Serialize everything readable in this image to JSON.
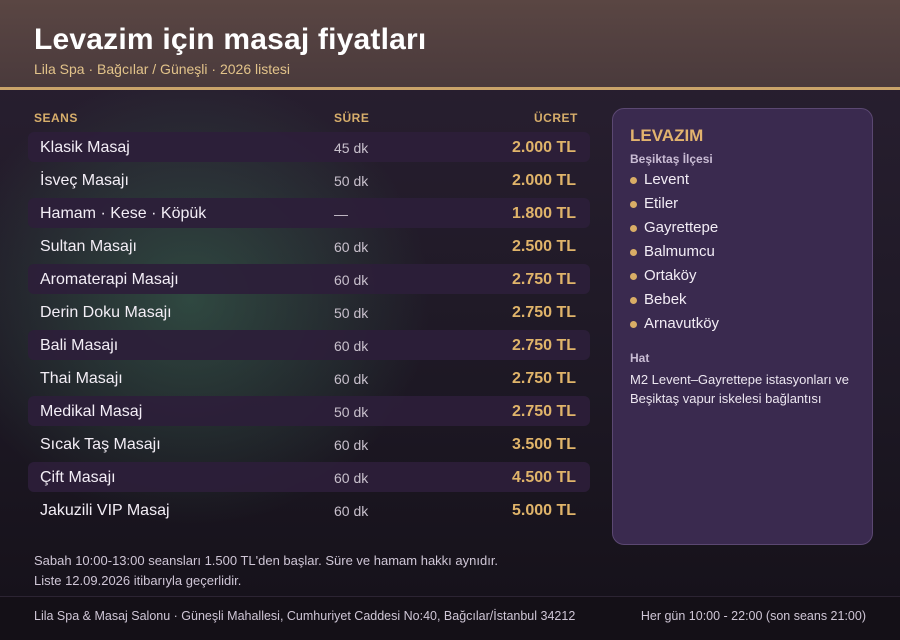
{
  "header": {
    "title": "Levazim için masaj fiyatları",
    "subtitle": "Lila Spa · Bağcılar / Güneşli · 2026 listesi"
  },
  "table": {
    "columns": {
      "session": "SEANS",
      "duration": "SÜRE",
      "price": "ÜCRET"
    },
    "rows": [
      {
        "name": "Klasik Masaj",
        "duration": "45 dk",
        "price": "2.000 TL"
      },
      {
        "name": "İsveç Masajı",
        "duration": "50 dk",
        "price": "2.000 TL"
      },
      {
        "name": "Hamam · Kese · Köpük",
        "duration": "—",
        "price": "1.800 TL"
      },
      {
        "name": "Sultan Masajı",
        "duration": "60 dk",
        "price": "2.500 TL"
      },
      {
        "name": "Aromaterapi Masajı",
        "duration": "60 dk",
        "price": "2.750 TL"
      },
      {
        "name": "Derin Doku Masajı",
        "duration": "50 dk",
        "price": "2.750 TL"
      },
      {
        "name": "Bali Masajı",
        "duration": "60 dk",
        "price": "2.750 TL"
      },
      {
        "name": "Thai Masajı",
        "duration": "60 dk",
        "price": "2.750 TL"
      },
      {
        "name": "Medikal Masaj",
        "duration": "50 dk",
        "price": "2.750 TL"
      },
      {
        "name": "Sıcak Taş Masajı",
        "duration": "60 dk",
        "price": "3.500 TL"
      },
      {
        "name": "Çift Masajı",
        "duration": "60 dk",
        "price": "4.500 TL"
      },
      {
        "name": "Jakuzili VIP Masaj",
        "duration": "60 dk",
        "price": "5.000 TL"
      }
    ]
  },
  "notes": {
    "line1": "Sabah 10:00-13:00 seansları 1.500 TL'den başlar. Süre ve hamam hakkı aynıdır.",
    "line2": "Liste 12.09.2026 itibarıyla geçerlidir."
  },
  "panel": {
    "title": "LEVAZIM",
    "district_label": "Beşiktaş İlçesi",
    "neighborhoods": [
      "Levent",
      "Etiler",
      "Gayrettepe",
      "Balmumcu",
      "Ortaköy",
      "Bebek",
      "Arnavutköy"
    ],
    "transit_label": "Hat",
    "transit_text": "M2 Levent–Gayrettepe istasyonları ve Beşiktaş vapur iskelesi bağlantısı"
  },
  "footer": {
    "address": "Lila Spa & Masaj Salonu · Güneşli Mahallesi, Cumhuriyet Caddesi No:40, Bağcılar/İstanbul 34212",
    "hours": "Her gün 10:00 - 22:00 (son seans 21:00)"
  },
  "colors": {
    "accent_gold": "#e0b46a",
    "header_bg": "#4f3e3f",
    "panel_bg": "#3a2a4f",
    "row_shade": "#2c1e3a"
  }
}
